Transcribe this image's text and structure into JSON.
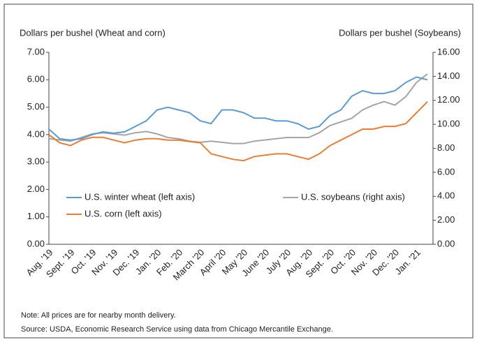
{
  "chart_data": {
    "type": "line",
    "y_label": "Dollars per bushel (Wheat and corn)",
    "y2_label": "Dollars per bushel (Soybeans)",
    "categories": [
      "Aug. '19",
      null,
      "Sept. '19",
      null,
      "Oct. '19",
      null,
      "Nov. '19",
      null,
      "Dec. '19",
      null,
      "Jan. '20",
      null,
      "Feb. '20",
      null,
      "March '20",
      null,
      "April '20",
      null,
      "May '20",
      null,
      "June '20",
      null,
      "July '20",
      null,
      "Aug. '20",
      null,
      "Sept. '20",
      null,
      "Oct. '20",
      null,
      "Nov. '20",
      null,
      "Dec. '20",
      null,
      "Jan. '21",
      null
    ],
    "series": [
      {
        "name": "U.S. winter wheat (left axis)",
        "color": "#5b9bd5",
        "axis": "y",
        "values": [
          4.2,
          3.85,
          3.8,
          3.85,
          4.0,
          4.1,
          4.05,
          4.1,
          4.3,
          4.5,
          4.9,
          5.0,
          4.9,
          4.8,
          4.5,
          4.4,
          4.9,
          4.9,
          4.8,
          4.6,
          4.6,
          4.5,
          4.5,
          4.4,
          4.2,
          4.3,
          4.7,
          4.9,
          5.4,
          5.6,
          5.5,
          5.5,
          5.6,
          5.9,
          6.1,
          6.0
        ]
      },
      {
        "name": "U.S. corn (left axis)",
        "color": "#ed7d31",
        "axis": "y",
        "values": [
          4.0,
          3.7,
          3.6,
          3.8,
          3.9,
          3.9,
          3.8,
          3.7,
          3.8,
          3.85,
          3.85,
          3.8,
          3.8,
          3.75,
          3.7,
          3.3,
          3.2,
          3.1,
          3.05,
          3.2,
          3.25,
          3.3,
          3.3,
          3.2,
          3.1,
          3.3,
          3.6,
          3.8,
          4.0,
          4.2,
          4.2,
          4.3,
          4.3,
          4.4,
          4.8,
          5.2
        ]
      },
      {
        "name": "U.S. soybeans (right axis)",
        "color": "#a5a5a5",
        "axis": "y2",
        "values": [
          8.8,
          8.7,
          8.6,
          8.9,
          9.2,
          9.3,
          9.2,
          9.1,
          9.3,
          9.4,
          9.2,
          8.9,
          8.8,
          8.6,
          8.5,
          8.6,
          8.5,
          8.4,
          8.4,
          8.6,
          8.7,
          8.8,
          8.9,
          8.9,
          8.9,
          9.3,
          9.9,
          10.2,
          10.5,
          11.2,
          11.6,
          11.9,
          11.6,
          12.3,
          13.5,
          14.2
        ]
      }
    ],
    "ylim": [
      0,
      7
    ],
    "yticks": [
      {
        "value": 0,
        "label": "0.00"
      },
      {
        "value": 1,
        "label": "1.00"
      },
      {
        "value": 2,
        "label": "2.00"
      },
      {
        "value": 3,
        "label": "3.00"
      },
      {
        "value": 4,
        "label": "4.00"
      },
      {
        "value": 5,
        "label": "5.00"
      },
      {
        "value": 6,
        "label": "6.00"
      },
      {
        "value": 7,
        "label": "7.00"
      }
    ],
    "y2lim": [
      0,
      16
    ],
    "y2ticks": [
      {
        "value": 0,
        "label": "0.00"
      },
      {
        "value": 2,
        "label": "2.00"
      },
      {
        "value": 4,
        "label": "4.00"
      },
      {
        "value": 6,
        "label": "6.00"
      },
      {
        "value": 8,
        "label": "8.00"
      },
      {
        "value": 10,
        "label": "10.00"
      },
      {
        "value": 12,
        "label": "12.00"
      },
      {
        "value": 14,
        "label": "14.00"
      },
      {
        "value": 16,
        "label": "16.00"
      }
    ],
    "notes": [
      "Note: All prices are for nearby month delivery.",
      "Source: USDA, Economic Research Service using data from Chicago Mercantile Exchange."
    ]
  }
}
